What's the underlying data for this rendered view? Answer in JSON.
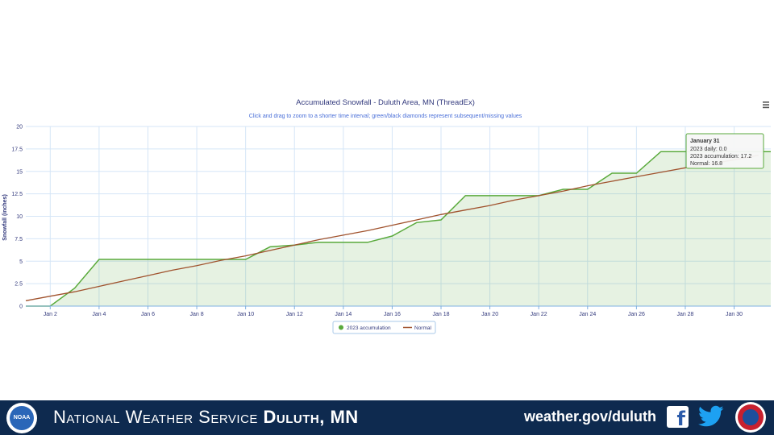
{
  "chart_data": {
    "type": "area",
    "title": "Accumulated Snowfall - Duluth Area, MN (ThreadEx)",
    "subtitle": "Click and drag to zoom to a shorter time interval; green/black diamonds represent subsequent/missing values",
    "ylabel": "Snowfall (inches)",
    "xlabel": "",
    "xlim": [
      1,
      31.5
    ],
    "ylim": [
      0,
      20
    ],
    "y_ticks": [
      "0",
      "2.5",
      "5",
      "7.5",
      "10",
      "12.5",
      "15",
      "17.5",
      "20"
    ],
    "x_ticks": [
      {
        "day": 2,
        "label": "Jan 2"
      },
      {
        "day": 4,
        "label": "Jan 4"
      },
      {
        "day": 6,
        "label": "Jan 6"
      },
      {
        "day": 8,
        "label": "Jan 8"
      },
      {
        "day": 10,
        "label": "Jan 10"
      },
      {
        "day": 12,
        "label": "Jan 12"
      },
      {
        "day": 14,
        "label": "Jan 14"
      },
      {
        "day": 16,
        "label": "Jan 16"
      },
      {
        "day": 18,
        "label": "Jan 18"
      },
      {
        "day": 20,
        "label": "Jan 20"
      },
      {
        "day": 22,
        "label": "Jan 22"
      },
      {
        "day": 24,
        "label": "Jan 24"
      },
      {
        "day": 26,
        "label": "Jan 26"
      },
      {
        "day": 28,
        "label": "Jan 28"
      },
      {
        "day": 30,
        "label": "Jan 30"
      }
    ],
    "grid": true,
    "legend_position": "bottom-center",
    "series": [
      {
        "name": "2023 accumulation",
        "color": "#5aaa3c",
        "type": "area",
        "x": [
          1,
          2,
          3,
          4,
          5,
          6,
          7,
          8,
          9,
          10,
          11,
          12,
          13,
          14,
          15,
          16,
          17,
          18,
          19,
          20,
          21,
          22,
          23,
          24,
          25,
          26,
          27,
          28,
          29,
          30,
          31
        ],
        "values": [
          0,
          0,
          2.0,
          5.2,
          5.2,
          5.2,
          5.2,
          5.2,
          5.2,
          5.2,
          6.6,
          6.8,
          7.1,
          7.1,
          7.1,
          7.8,
          9.3,
          9.6,
          12.3,
          12.3,
          12.3,
          12.3,
          13.0,
          13.0,
          14.8,
          14.8,
          17.2,
          17.2,
          17.2,
          17.2,
          17.2
        ]
      },
      {
        "name": "Normal",
        "color": "#a0522d",
        "type": "line",
        "x": [
          1,
          2,
          3,
          4,
          5,
          6,
          7,
          8,
          9,
          10,
          11,
          12,
          13,
          14,
          15,
          16,
          17,
          18,
          19,
          20,
          21,
          22,
          23,
          24,
          25,
          26,
          27,
          28,
          29,
          30,
          31
        ],
        "values": [
          0.6,
          1.1,
          1.6,
          2.2,
          2.8,
          3.4,
          4.0,
          4.5,
          5.1,
          5.6,
          6.2,
          6.8,
          7.4,
          7.9,
          8.4,
          9.0,
          9.6,
          10.2,
          10.7,
          11.2,
          11.8,
          12.3,
          12.8,
          13.4,
          13.9,
          14.4,
          14.9,
          15.4,
          15.8,
          16.3,
          16.8
        ]
      }
    ],
    "tooltip": {
      "date": "January 31",
      "lines": [
        "2023 daily: 0.0",
        "2023 accumulation: 17.2",
        "Normal: 16.8"
      ]
    }
  },
  "menu_icon": "hamburger-menu-icon",
  "footer": {
    "title_prefix": "National Weather Service ",
    "office": "Duluth, MN",
    "url": "weather.gov/duluth",
    "facebook_glyph": "f",
    "noaa_text": "NOAA",
    "background_color": "#0e2a4f"
  }
}
